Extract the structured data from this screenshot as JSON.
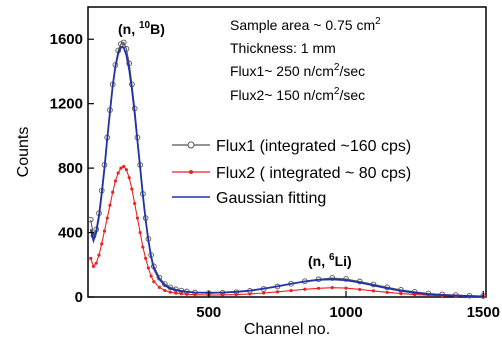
{
  "chart_data": {
    "type": "line",
    "xlabel": "Channel no.",
    "ylabel": "Counts",
    "xlim": [
      60,
      1510
    ],
    "ylim": [
      0,
      1800
    ],
    "x_ticks": [
      {
        "value": 500,
        "label": "500"
      },
      {
        "value": 1000,
        "label": "1000"
      },
      {
        "value": 1500,
        "label": "1500"
      }
    ],
    "y_ticks": [
      {
        "value": 0,
        "label": "0"
      },
      {
        "value": 400,
        "label": "400"
      },
      {
        "value": 800,
        "label": "800"
      },
      {
        "value": 1200,
        "label": "1200"
      },
      {
        "value": 1600,
        "label": "1600"
      }
    ],
    "annotations": {
      "peak_b": {
        "text": "(n, ",
        "sup": "10",
        "tail": "B)"
      },
      "peak_li": {
        "text": "(n, ",
        "sup": "6",
        "tail": "Li)"
      },
      "sample_area": {
        "text": "Sample area ~ 0.75 cm",
        "sup": "2"
      },
      "thickness": {
        "text": "Thickness: 1 mm"
      },
      "flux1": {
        "text": "Flux1~ 250 n/cm",
        "sup": "2",
        "tail": "/sec"
      },
      "flux2": {
        "text": "Flux2~ 150 n/cm",
        "sup": "2",
        "tail": "/sec"
      }
    },
    "legend": [
      {
        "label": "Flux1 (integrated ~160 cps)",
        "color": "#555555",
        "marker": "open-circle"
      },
      {
        "label": "Flux2 ( integrated ~ 80 cps)",
        "color": "#ee2222",
        "marker": "star"
      },
      {
        "label": "Gaussian fitting",
        "color": "#2233aa",
        "marker": "line"
      }
    ],
    "series": [
      {
        "name": "Flux1 (integrated ~160 cps)",
        "color": "#555555",
        "x": [
          70,
          80,
          90,
          100,
          110,
          120,
          130,
          140,
          150,
          160,
          170,
          180,
          190,
          200,
          210,
          220,
          230,
          240,
          250,
          260,
          270,
          280,
          290,
          300,
          320,
          340,
          360,
          380,
          400,
          420,
          450,
          500,
          550,
          600,
          650,
          700,
          750,
          800,
          850,
          900,
          950,
          1000,
          1050,
          1100,
          1150,
          1200,
          1250,
          1300,
          1350,
          1400,
          1450,
          1500
        ],
        "y": [
          480,
          380,
          420,
          520,
          660,
          820,
          990,
          1160,
          1320,
          1440,
          1530,
          1570,
          1580,
          1540,
          1450,
          1320,
          1170,
          990,
          820,
          640,
          490,
          360,
          260,
          190,
          120,
          80,
          60,
          48,
          40,
          34,
          28,
          24,
          26,
          30,
          38,
          50,
          65,
          82,
          98,
          110,
          118,
          112,
          96,
          78,
          60,
          44,
          32,
          22,
          16,
          12,
          8,
          6
        ]
      },
      {
        "name": "Flux2 ( integrated ~ 80 cps)",
        "color": "#ee2222",
        "x": [
          70,
          80,
          90,
          100,
          110,
          120,
          130,
          140,
          150,
          160,
          170,
          180,
          190,
          200,
          210,
          220,
          230,
          240,
          250,
          260,
          270,
          280,
          290,
          300,
          320,
          340,
          360,
          380,
          400,
          420,
          450,
          500,
          550,
          600,
          650,
          700,
          750,
          800,
          850,
          900,
          950,
          1000,
          1050,
          1100,
          1150,
          1200,
          1250,
          1300,
          1350,
          1400,
          1450,
          1500
        ],
        "y": [
          240,
          190,
          210,
          260,
          330,
          410,
          490,
          570,
          650,
          720,
          770,
          800,
          810,
          790,
          740,
          670,
          580,
          490,
          400,
          310,
          240,
          180,
          130,
          95,
          60,
          40,
          30,
          24,
          20,
          17,
          14,
          12,
          13,
          15,
          19,
          25,
          32,
          40,
          48,
          54,
          58,
          55,
          47,
          38,
          29,
          21,
          15,
          11,
          8,
          6,
          4,
          3
        ]
      },
      {
        "name": "Gaussian fitting",
        "color": "#2233aa",
        "x": [
          70,
          80,
          90,
          100,
          110,
          120,
          130,
          140,
          150,
          160,
          170,
          180,
          190,
          200,
          210,
          220,
          230,
          240,
          250,
          260,
          270,
          280,
          290,
          300,
          320,
          340,
          360,
          380,
          400,
          420,
          450,
          500,
          550,
          600,
          650,
          700,
          750,
          800,
          850,
          900,
          950,
          1000,
          1050,
          1100,
          1150,
          1200,
          1250,
          1300,
          1350,
          1400,
          1450,
          1500
        ],
        "y": [
          420,
          350,
          400,
          500,
          640,
          800,
          980,
          1150,
          1310,
          1430,
          1510,
          1550,
          1550,
          1500,
          1410,
          1290,
          1140,
          970,
          800,
          630,
          480,
          350,
          250,
          175,
          110,
          72,
          52,
          42,
          36,
          32,
          28,
          26,
          28,
          32,
          40,
          52,
          66,
          82,
          96,
          106,
          110,
          104,
          90,
          72,
          54,
          38,
          26,
          18,
          12,
          8,
          5,
          3
        ]
      }
    ]
  }
}
